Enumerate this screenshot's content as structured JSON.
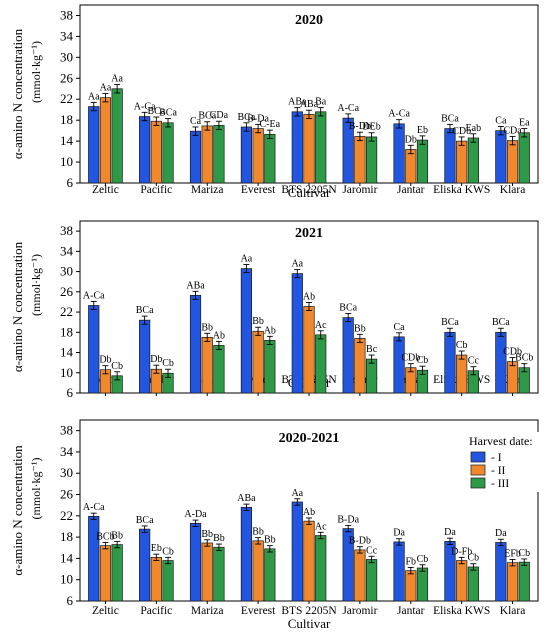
{
  "figure": {
    "ylabel": "α-amino N concentration\n(mmol·kg⁻¹)",
    "xlabel": "Cultivar",
    "legend_title": "Harvest date:",
    "series_names": [
      "- I",
      "- II",
      "- III"
    ],
    "colors": {
      "I": "#2255e0",
      "II": "#f0882e",
      "III": "#2e9a48"
    }
  },
  "chart_data": [
    {
      "type": "bar",
      "title": "2020",
      "xlabel": "Cultivar",
      "ylabel": "α-amino N concentration (mmol·kg⁻¹)",
      "ylim": [
        6,
        40
      ],
      "yticks": [
        6,
        10,
        14,
        18,
        22,
        26,
        30,
        34,
        38
      ],
      "categories": [
        "Zeltic",
        "Pacific",
        "Mariza",
        "Everest",
        "BTS 2205N",
        "Jaromir",
        "Jantar",
        "Eliska KWS",
        "Klara"
      ],
      "series": [
        {
          "name": "- I",
          "values": [
            20.6,
            18.7,
            15.9,
            16.7,
            19.6,
            18.4,
            17.3,
            16.4,
            16.0
          ],
          "errors": [
            0.8,
            0.8,
            0.8,
            0.8,
            0.8,
            0.8,
            0.8,
            0.8,
            0.8
          ],
          "labels": [
            "Aa",
            "A-Ca",
            "Ca",
            "BCa",
            "ABa",
            "A-Ca",
            "A-Ca",
            "BCa",
            "Ca"
          ]
        },
        {
          "name": "- II",
          "values": [
            22.3,
            17.8,
            16.9,
            16.4,
            19.1,
            14.9,
            12.4,
            14.0,
            14.1
          ],
          "errors": [
            0.8,
            0.8,
            0.8,
            0.8,
            0.8,
            0.8,
            0.8,
            0.8,
            0.8
          ],
          "labels": [
            "Aa",
            "BCa",
            "BCa",
            "B-Da",
            "ABa",
            "B-Db",
            "Db",
            "CDb",
            "CDa"
          ]
        },
        {
          "name": "- III",
          "values": [
            24.0,
            17.5,
            17.0,
            15.3,
            19.6,
            14.8,
            14.2,
            14.6,
            15.6
          ],
          "errors": [
            0.8,
            0.8,
            0.8,
            0.8,
            0.8,
            0.8,
            0.8,
            0.8,
            0.8
          ],
          "labels": [
            "Aa",
            "BCa",
            "CDa",
            "C-Ea",
            "Ba",
            "DEb",
            "Eb",
            "Eab",
            "Ea"
          ]
        }
      ]
    },
    {
      "type": "bar",
      "title": "2021",
      "xlabel": "Cultivar",
      "ylabel": "α-amino N concentration (mmol·kg⁻¹)",
      "ylim": [
        6,
        40
      ],
      "yticks": [
        6,
        10,
        14,
        18,
        22,
        26,
        30,
        34,
        38
      ],
      "categories": [
        "Zeltic",
        "Pacific",
        "Mariza",
        "Everest",
        "BTS 2205N",
        "Jaromir",
        "Jantar",
        "Eliska KWS",
        "Klara"
      ],
      "series": [
        {
          "name": "- I",
          "values": [
            23.3,
            20.4,
            25.3,
            30.6,
            29.6,
            20.9,
            17.1,
            18.0,
            18.0
          ],
          "errors": [
            0.8,
            0.8,
            0.8,
            0.8,
            0.8,
            0.8,
            0.8,
            0.8,
            0.8
          ],
          "labels": [
            "A-Ca",
            "BCa",
            "ABa",
            "Aa",
            "Aa",
            "BCa",
            "Ca",
            "BCa",
            "BCa"
          ]
        },
        {
          "name": "- II",
          "values": [
            10.6,
            10.7,
            17.0,
            18.2,
            23.1,
            16.8,
            11.0,
            13.5,
            12.2
          ],
          "errors": [
            0.8,
            0.8,
            0.8,
            0.8,
            0.8,
            0.8,
            0.8,
            0.8,
            0.8
          ],
          "labels": [
            "Db",
            "Db",
            "Bb",
            "Bb",
            "Ab",
            "Bb",
            "CDb",
            "Cb",
            "CDb"
          ]
        },
        {
          "name": "- III",
          "values": [
            9.4,
            9.9,
            15.4,
            16.4,
            17.5,
            12.7,
            10.5,
            10.4,
            11.0
          ],
          "errors": [
            0.8,
            0.8,
            0.8,
            0.8,
            0.8,
            0.8,
            0.8,
            0.8,
            0.8
          ],
          "labels": [
            "Cb",
            "Cb",
            "Ab",
            "Ab",
            "Ac",
            "Bc",
            "Cb",
            "Cc",
            "BCb"
          ]
        }
      ]
    },
    {
      "type": "bar",
      "title": "2020-2021",
      "xlabel": "Cultivar",
      "ylabel": "α-amino N concentration (mmol·kg⁻¹)",
      "ylim": [
        6,
        40
      ],
      "yticks": [
        6,
        10,
        14,
        18,
        22,
        26,
        30,
        34,
        38
      ],
      "legend": "top-right",
      "categories": [
        "Zeltic",
        "Pacific",
        "Mariza",
        "Everest",
        "BTS 2205N",
        "Jaromir",
        "Jantar",
        "Eliska KWS",
        "Klara"
      ],
      "series": [
        {
          "name": "- I",
          "values": [
            21.9,
            19.5,
            20.6,
            23.6,
            24.6,
            19.6,
            17.1,
            17.2,
            17.0
          ],
          "errors": [
            0.6,
            0.6,
            0.6,
            0.6,
            0.6,
            0.6,
            0.6,
            0.6,
            0.6
          ],
          "labels": [
            "A-Ca",
            "BCa",
            "A-Da",
            "ABa",
            "Aa",
            "B-Da",
            "Da",
            "Da",
            "Da"
          ]
        },
        {
          "name": "- II",
          "values": [
            16.4,
            14.2,
            16.9,
            17.3,
            21.0,
            15.6,
            11.7,
            13.6,
            13.2
          ],
          "errors": [
            0.6,
            0.6,
            0.6,
            0.6,
            0.6,
            0.6,
            0.6,
            0.6,
            0.6
          ],
          "labels": [
            "BCb",
            "Eb",
            "Bb",
            "Bb",
            "Ab",
            "B-Db",
            "Fb",
            "D-Fb",
            "EFb"
          ]
        },
        {
          "name": "- III",
          "values": [
            16.6,
            13.6,
            16.1,
            15.8,
            18.3,
            13.8,
            12.2,
            12.4,
            13.3
          ],
          "errors": [
            0.6,
            0.6,
            0.6,
            0.6,
            0.6,
            0.6,
            0.6,
            0.6,
            0.6
          ],
          "labels": [
            "Bb",
            "Cb",
            "Bb",
            "Bb",
            "Ac",
            "Cc",
            "Cb",
            "Cb",
            "Cb"
          ]
        }
      ]
    }
  ]
}
